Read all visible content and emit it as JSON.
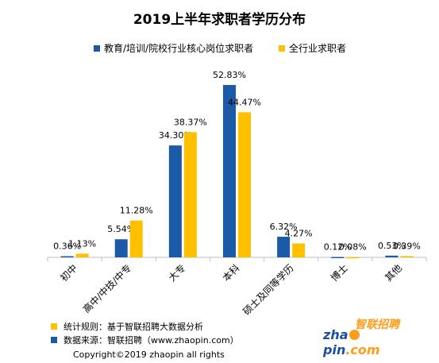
{
  "chart_data": {
    "type": "bar",
    "title": "2019上半年求职者学历分布",
    "categories": [
      "初中",
      "高中/中技/中专",
      "大专",
      "本科",
      "硕士及同等学历",
      "博士",
      "其他"
    ],
    "series": [
      {
        "name": "教育/培训/院校行业核心岗位求职者",
        "color": "#1b5aa8",
        "values": [
          0.36,
          5.54,
          34.3,
          52.83,
          6.32,
          0.12,
          0.53
        ],
        "labels": [
          "0.36%",
          "5.54%",
          "34.30%",
          "52.83%",
          "6.32%",
          "0.12%",
          "0.53%"
        ]
      },
      {
        "name": "全行业求职者",
        "color": "#ffc000",
        "values": [
          1.13,
          11.28,
          38.37,
          44.47,
          4.27,
          0.08,
          0.39
        ],
        "labels": [
          "1.13%",
          "11.28%",
          "38.37%",
          "44.47%",
          "4.27%",
          "0.08%",
          "0.39%"
        ]
      }
    ],
    "ylim": [
      0,
      60
    ],
    "grid": false,
    "legend_position": "top"
  },
  "notes": {
    "rule": "统计规则：基于智联招聘大数据分析",
    "source": "数据来源：智联招聘（www.zhaopin.com）",
    "rule_color": "#ffc000",
    "source_color": "#1b5aa8"
  },
  "copyright": "Copyright©2019 zhaopin all rights",
  "logo": {
    "cn": "智联招聘",
    "en_pre": "zha",
    "en_post": "pin",
    "en_tail": ".com"
  }
}
